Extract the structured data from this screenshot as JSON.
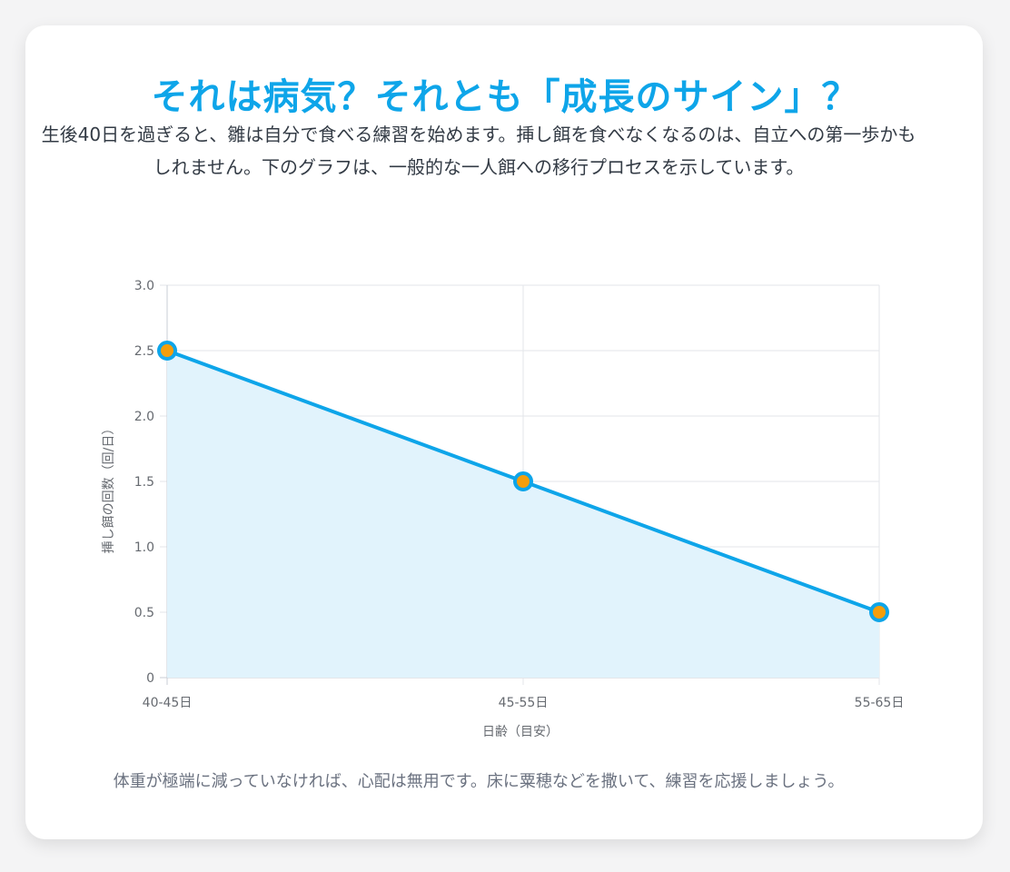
{
  "header": {
    "title": "それは病気？それとも「成長のサイン」？",
    "description": "生後40日を過ぎると、雛は自分で食べる練習を始めます。挿し餌を食べなくなるのは、自立への第一歩かもしれません。下のグラフは、一般的な一人餌への移行プロセスを示しています。"
  },
  "footer": {
    "note": "体重が極端に減っていなければ、心配は無用です。床に粟穂などを撒いて、練習を応援しましょう。"
  },
  "colors": {
    "accent": "#0ea5e9",
    "line": "#0ea5e9",
    "fill": "#e1f3fc",
    "point": "#f59e0b"
  },
  "chart_data": {
    "type": "area",
    "categories": [
      "40-45日",
      "45-55日",
      "55-65日"
    ],
    "series": [
      {
        "values": [
          2.5,
          1.5,
          0.5
        ]
      }
    ],
    "xlabel": "日齢（目安）",
    "ylabel": "挿し餌の回数（回/日）",
    "ylim": [
      0,
      3.0
    ],
    "yticks": [
      "0",
      "0.5",
      "1.0",
      "1.5",
      "2.0",
      "2.5",
      "3.0"
    ],
    "grid": true,
    "legend": "none"
  }
}
